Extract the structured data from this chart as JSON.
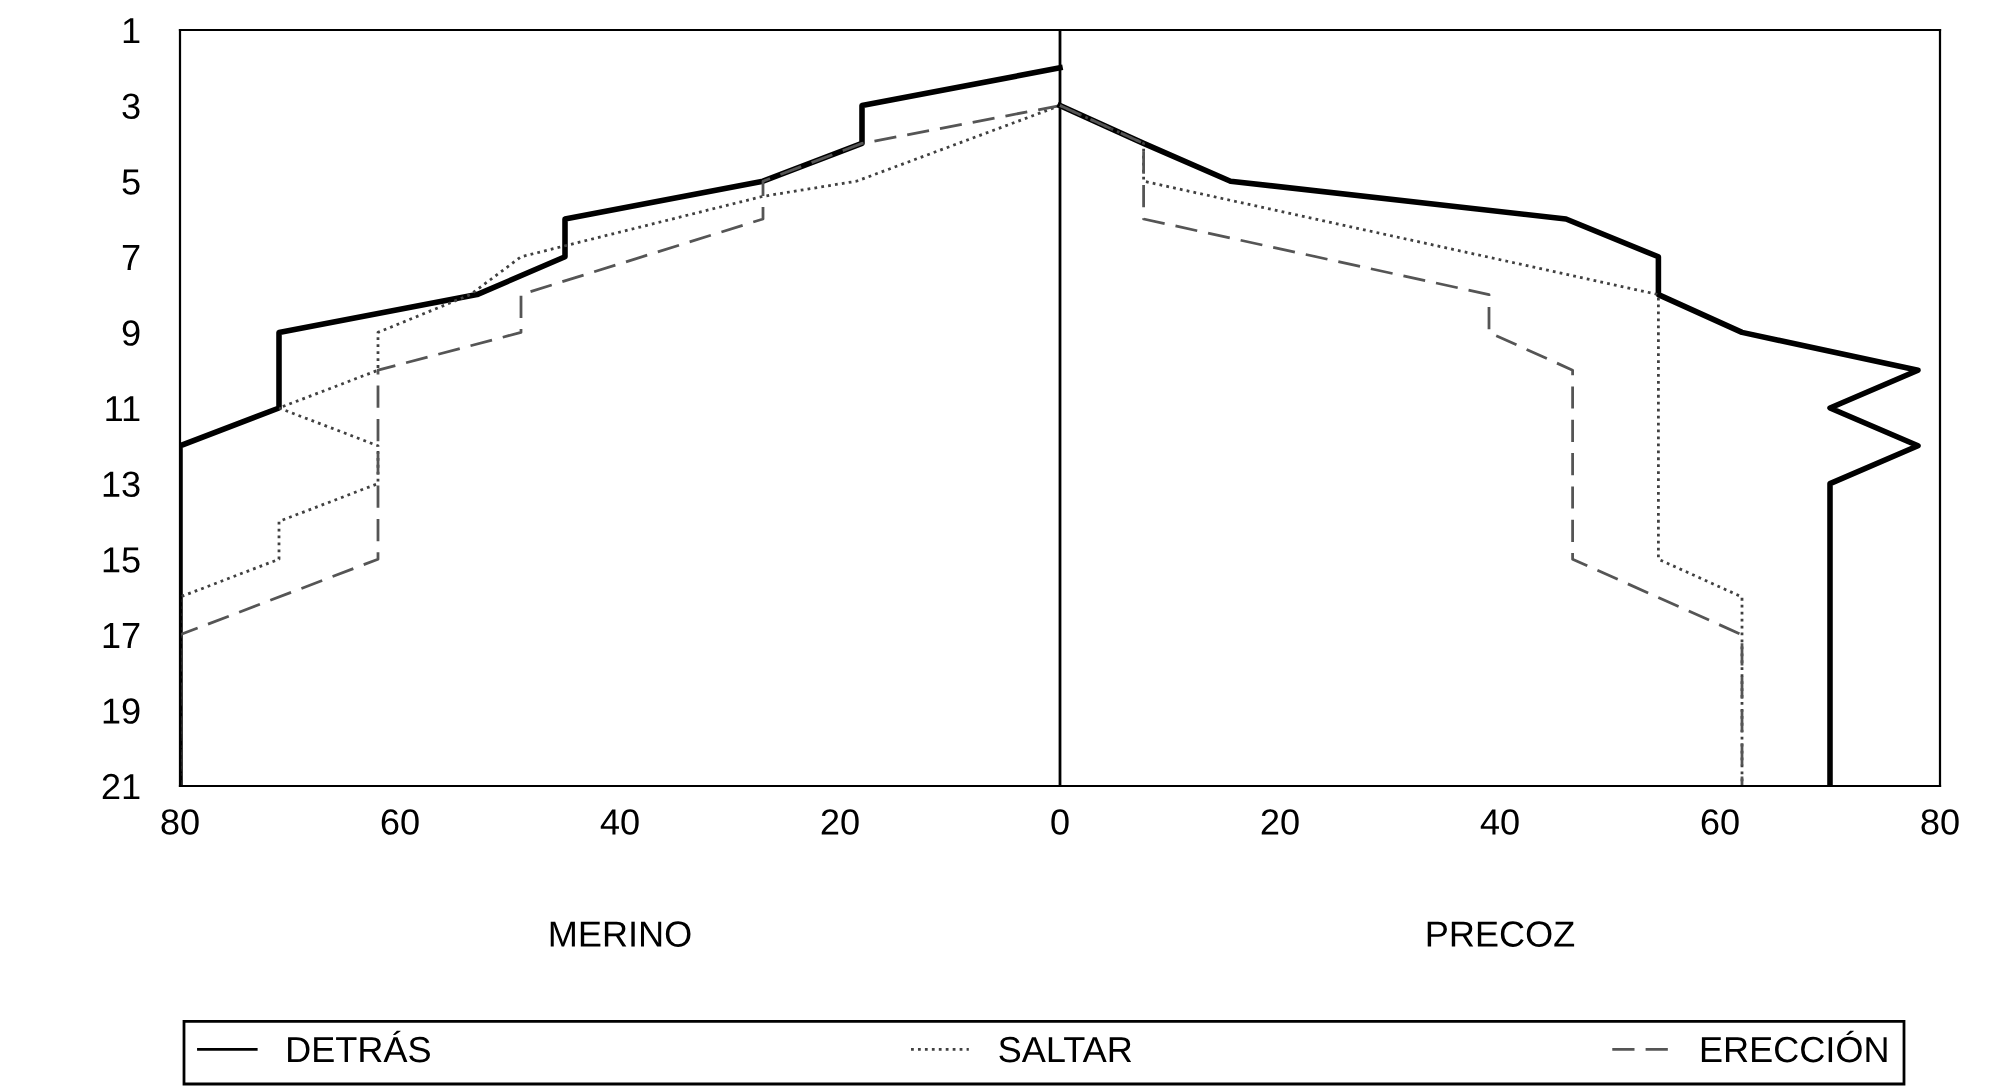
{
  "chart_data": {
    "type": "line",
    "annotations": [
      "MERINO",
      "PRECOZ"
    ],
    "xlim": [
      -80,
      80
    ],
    "ylim": [
      21,
      1
    ],
    "grid": false,
    "legend": "bottom",
    "xticks": [
      {
        "value": -80,
        "label": "80"
      },
      {
        "value": -60,
        "label": "60"
      },
      {
        "value": -40,
        "label": "40"
      },
      {
        "value": -20,
        "label": "20"
      },
      0,
      20,
      40,
      60,
      80
    ],
    "yticks": [
      1,
      3,
      5,
      7,
      9,
      11,
      13,
      15,
      17,
      19,
      21
    ],
    "ref_lines": [
      {
        "axis": "x",
        "value": 0,
        "color": "#000000",
        "line_style": "solid"
      }
    ],
    "series": [
      {
        "color": "#000000",
        "line_style": "solid",
        "x": [
          0,
          -18,
          -18,
          -27,
          -45,
          -45,
          -53,
          -71,
          -71,
          -80,
          -80
        ],
        "values": [
          2,
          3,
          4,
          5,
          6,
          7,
          8,
          9,
          11,
          12,
          21
        ]
      },
      {
        "color": "#404040",
        "line_style": "dotted",
        "x": [
          0,
          -18.5,
          -27,
          -49,
          -53.6,
          -62,
          -62,
          -71,
          -62,
          -62,
          -71,
          -71,
          -80,
          -80
        ],
        "values": [
          3,
          5,
          5.4,
          7,
          8,
          9,
          10,
          11,
          12,
          13,
          14,
          15,
          16,
          21
        ]
      },
      {
        "color": "#555555",
        "line_style": "dashed",
        "x": [
          0,
          -18,
          -27,
          -27,
          -49,
          -49,
          -62,
          -62,
          -80,
          -80
        ],
        "values": [
          3,
          4,
          5,
          6,
          8,
          9,
          10,
          15,
          17,
          21
        ]
      },
      {
        "name": "DETRÁS",
        "color": "#000000",
        "line_style": "solid",
        "x": [
          0,
          7.6,
          15.5,
          46,
          54.4,
          54.4,
          62,
          78,
          70,
          78,
          70,
          70
        ],
        "values": [
          3,
          4,
          5,
          6,
          7,
          8,
          9,
          10,
          11,
          12,
          13,
          21
        ]
      },
      {
        "name": "SALTAR",
        "color": "#404040",
        "line_style": "dotted",
        "x": [
          0,
          7.6,
          7.6,
          54.4,
          54.4,
          62,
          62
        ],
        "values": [
          3,
          4,
          5,
          8,
          15,
          16,
          21
        ]
      },
      {
        "name": "ERECCIÓN",
        "color": "#555555",
        "line_style": "dashed",
        "x": [
          0,
          7.6,
          7.6,
          39,
          39,
          46.6,
          46.6,
          62,
          62
        ],
        "values": [
          3,
          4,
          6,
          8,
          9,
          10,
          15,
          17,
          21
        ]
      }
    ]
  }
}
